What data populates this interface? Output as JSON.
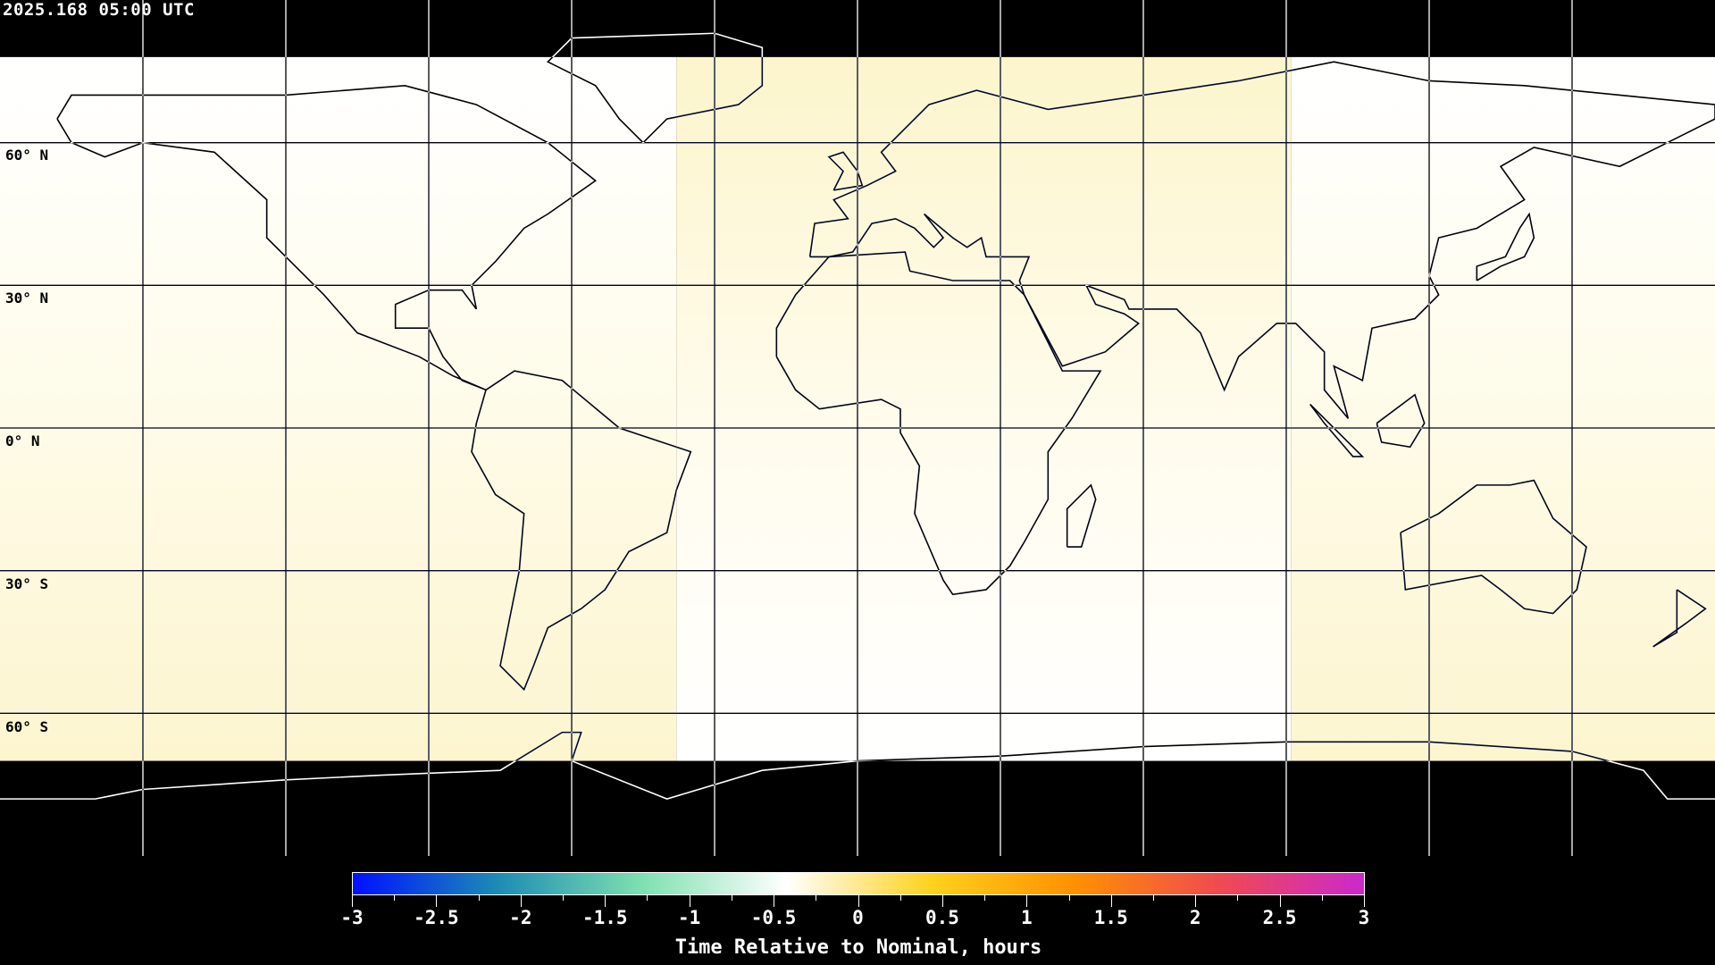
{
  "header": {
    "timestamp": "2025.168 05:00 UTC"
  },
  "map": {
    "projection": "equirectangular",
    "latitude_labels": [
      "60° N",
      "30° N",
      "0° N",
      "30° S",
      "60° S"
    ],
    "grid_spacing_degrees": 30,
    "no_data_color": "#000000"
  },
  "colorbar": {
    "title": "Time Relative to Nominal, hours",
    "min": -3,
    "max": 3,
    "tick_labels": [
      "-3",
      "-2.5",
      "-2",
      "-1.5",
      "-1",
      "-0.5",
      "0",
      "0.5",
      "1",
      "1.5",
      "2",
      "2.5",
      "3"
    ],
    "colors": [
      "#0010ff",
      "#1c8cb4",
      "#7fe0b0",
      "#ffffff",
      "#ffd21e",
      "#ff9000",
      "#f04a50",
      "#cc28cc"
    ]
  }
}
